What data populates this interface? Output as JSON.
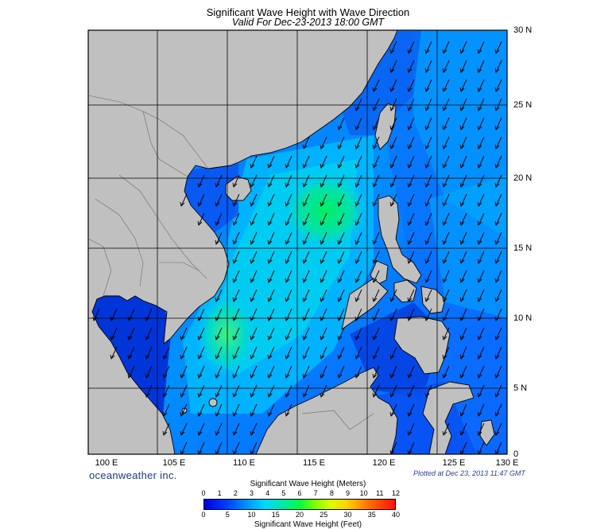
{
  "title": "Significant Wave Height with Wave Direction",
  "subtitle": "Valid For Dec-23-2013 18:00 GMT",
  "lat_labels": [
    "30 N",
    "25 N",
    "20 N",
    "15 N",
    "10 N",
    "5 N",
    "0"
  ],
  "lon_labels": [
    "100 E",
    "105 E",
    "110 E",
    "115 E",
    "120 E",
    "125 E",
    "130 E"
  ],
  "brand": "oceanweather inc.",
  "plotted": "Plotted at Dec 23, 2013 11:47 GMT",
  "colorbar": {
    "meters_title": "Significant Wave Height (Meters)",
    "feet_title": "Significant Wave Height (Feet)",
    "meters_ticks": [
      "0",
      "1",
      "2",
      "3",
      "4",
      "5",
      "6",
      "7",
      "8",
      "9",
      "10",
      "11",
      "12"
    ],
    "feet_ticks": [
      "0",
      "5",
      "10",
      "15",
      "20",
      "25",
      "30",
      "35",
      "40"
    ]
  },
  "colors": {
    "land": "#c0c0c0",
    "low_wave": "#0033ff",
    "mid_wave": "#00ccff",
    "high_wave": "#00e870"
  }
}
